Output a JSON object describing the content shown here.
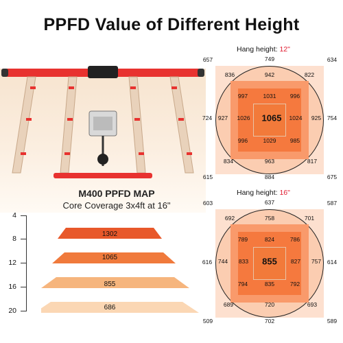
{
  "title": "PPFD Value of Different Height",
  "map": {
    "title": "M400 PPFD MAP",
    "subtitle": "Core Coverage 3x4ft at 16\""
  },
  "scale": {
    "heights": [
      "4",
      "8",
      "12",
      "16",
      "20"
    ],
    "bars": [
      {
        "value": "1302",
        "color": "#e8582a"
      },
      {
        "value": "1065",
        "color": "#f07a3c"
      },
      {
        "value": "855",
        "color": "#f6b57d"
      },
      {
        "value": "686",
        "color": "#fbd7b4"
      }
    ]
  },
  "maps": [
    {
      "hang_label": "Hang height:",
      "hang_value": "12\"",
      "corners": {
        "tl": "657",
        "tm": "749",
        "tr": "634",
        "ml": "724",
        "mr": "754",
        "bl": "615",
        "bm": "884",
        "br": "675"
      },
      "ring": {
        "tl": "836",
        "t": "942",
        "tr": "822",
        "l": "927",
        "r": "925",
        "bl": "834",
        "b": "963",
        "br": "817"
      },
      "inner": {
        "tl": "997",
        "t": "1031",
        "tr": "996",
        "l": "1026",
        "r": "1024",
        "bl": "996",
        "b": "1029",
        "br": "985"
      },
      "center": "1065"
    },
    {
      "hang_label": "Hang height:",
      "hang_value": "16\"",
      "corners": {
        "tl": "603",
        "tm": "637",
        "tr": "587",
        "ml": "616",
        "mr": "614",
        "bl": "509",
        "bm": "702",
        "br": "589"
      },
      "ring": {
        "tl": "692",
        "t": "758",
        "tr": "701",
        "l": "744",
        "r": "757",
        "bl": "689",
        "b": "720",
        "br": "693"
      },
      "inner": {
        "tl": "789",
        "t": "824",
        "tr": "786",
        "l": "833",
        "r": "827",
        "bl": "794",
        "b": "835",
        "br": "792"
      },
      "center": "855"
    }
  ],
  "colors": {
    "fixture_red": "#e8322f",
    "accent_red": "#e01b2f",
    "outer_bg": "#fde0cf",
    "circle": "#fbcdb1",
    "square_outer": "#f99a6b",
    "square_inner": "#f5793e"
  }
}
